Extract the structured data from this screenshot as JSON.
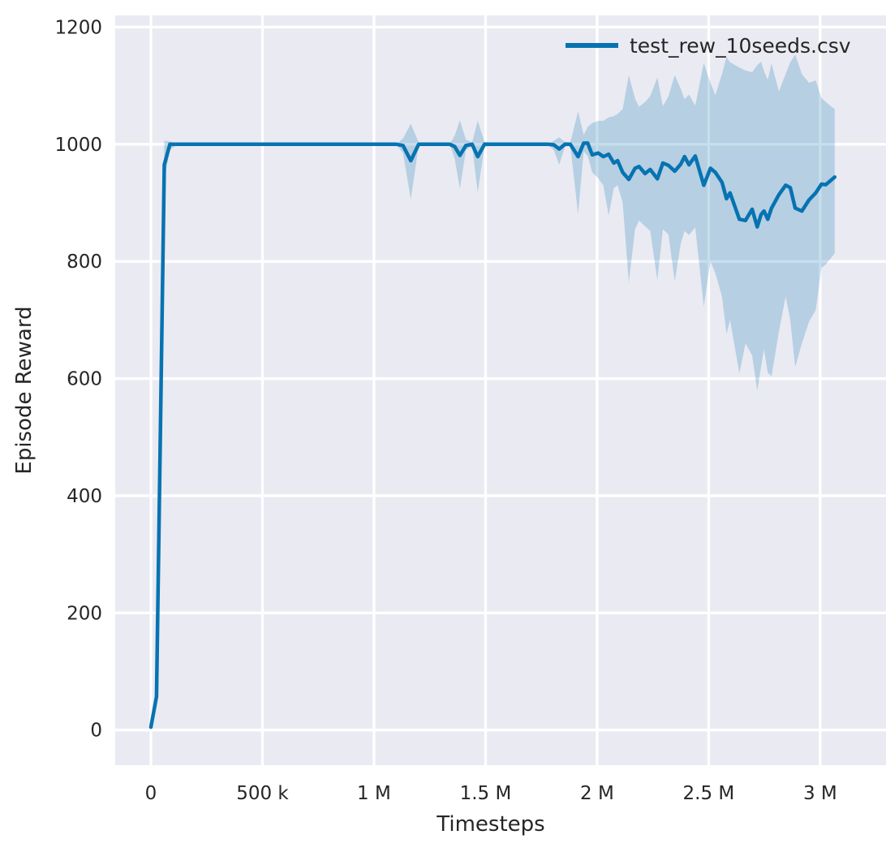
{
  "chart_data": {
    "type": "line",
    "title": "",
    "xlabel": "Timesteps",
    "ylabel": "Episode Reward",
    "grid": true,
    "legend_position": "upper right",
    "plot_background": "#eaeaf2",
    "grid_color": "#ffffff",
    "text_color": "#262626",
    "line_color": "#0773b1",
    "band_color": "#0773b1",
    "band_alpha": 0.23,
    "x_unit": "steps_thousands",
    "xlim_k": [
      -160,
      3295
    ],
    "ylim": [
      -60,
      1220
    ],
    "xticks": [
      {
        "value_k": 0,
        "label": "0"
      },
      {
        "value_k": 500,
        "label": "500 k"
      },
      {
        "value_k": 1000,
        "label": "1 M"
      },
      {
        "value_k": 1500,
        "label": "1.5 M"
      },
      {
        "value_k": 2000,
        "label": "2 M"
      },
      {
        "value_k": 2500,
        "label": "2.5 M"
      },
      {
        "value_k": 3000,
        "label": "3 M"
      }
    ],
    "yticks": [
      {
        "value": 0,
        "label": "0"
      },
      {
        "value": 200,
        "label": "200"
      },
      {
        "value": 400,
        "label": "400"
      },
      {
        "value": 600,
        "label": "600"
      },
      {
        "value": 800,
        "label": "800"
      },
      {
        "value": 1000,
        "label": "1000"
      },
      {
        "value": 1200,
        "label": "1200"
      }
    ],
    "series": [
      {
        "name": "test_rew_10seeds.csv",
        "x_k": [
          0,
          25,
          60,
          85,
          120,
          400,
          800,
          1100,
          1130,
          1165,
          1200,
          1340,
          1362,
          1385,
          1412,
          1440,
          1465,
          1495,
          1600,
          1780,
          1806,
          1830,
          1856,
          1880,
          1915,
          1940,
          1958,
          1978,
          2005,
          2028,
          2052,
          2075,
          2092,
          2115,
          2142,
          2170,
          2188,
          2215,
          2238,
          2270,
          2295,
          2320,
          2348,
          2375,
          2392,
          2412,
          2440,
          2478,
          2508,
          2530,
          2560,
          2580,
          2596,
          2638,
          2665,
          2695,
          2718,
          2735,
          2748,
          2765,
          2782,
          2815,
          2845,
          2866,
          2888,
          2918,
          2950,
          2980,
          3006,
          3025,
          3065
        ],
        "mean": [
          5,
          57,
          965,
          1000,
          1000,
          1000,
          1000,
          1000,
          998,
          972,
          1000,
          1000,
          996,
          981,
          998,
          1000,
          979,
          1000,
          1000,
          1000,
          999,
          992,
          1000,
          1000,
          979,
          1002,
          1002,
          982,
          985,
          979,
          983,
          968,
          972,
          952,
          940,
          959,
          962,
          950,
          957,
          941,
          968,
          964,
          954,
          966,
          979,
          965,
          980,
          930,
          959,
          952,
          935,
          907,
          917,
          872,
          870,
          889,
          859,
          880,
          886,
          872,
          891,
          914,
          930,
          926,
          891,
          886,
          905,
          917,
          932,
          931,
          944
        ],
        "lo": [
          5,
          50,
          940,
          990,
          1000,
          1000,
          1000,
          1000,
          985,
          906,
          998,
          1000,
          975,
          924,
          990,
          997,
          918,
          996,
          1000,
          1000,
          990,
          965,
          996,
          998,
          881,
          988,
          980,
          952,
          942,
          930,
          879,
          925,
          930,
          900,
          764,
          855,
          870,
          860,
          852,
          768,
          855,
          846,
          766,
          830,
          852,
          845,
          858,
          723,
          800,
          780,
          740,
          676,
          700,
          609,
          660,
          640,
          579,
          620,
          650,
          610,
          604,
          680,
          740,
          700,
          620,
          660,
          697,
          717,
          789,
          795,
          814
        ],
        "hi": [
          5,
          64,
          1006,
          1005,
          1000,
          1000,
          1000,
          1000,
          1010,
          1035,
          1003,
          1000,
          1015,
          1041,
          1008,
          1003,
          1040,
          1004,
          1000,
          1000,
          1006,
          1012,
          1004,
          1003,
          1056,
          1016,
          1030,
          1036,
          1040,
          1040,
          1046,
          1048,
          1052,
          1060,
          1118,
          1078,
          1064,
          1072,
          1082,
          1114,
          1065,
          1082,
          1118,
          1095,
          1077,
          1085,
          1066,
          1139,
          1105,
          1084,
          1120,
          1149,
          1140,
          1131,
          1126,
          1123,
          1135,
          1141,
          1125,
          1110,
          1138,
          1090,
          1120,
          1140,
          1153,
          1120,
          1105,
          1109,
          1079,
          1072,
          1060
        ]
      }
    ]
  }
}
